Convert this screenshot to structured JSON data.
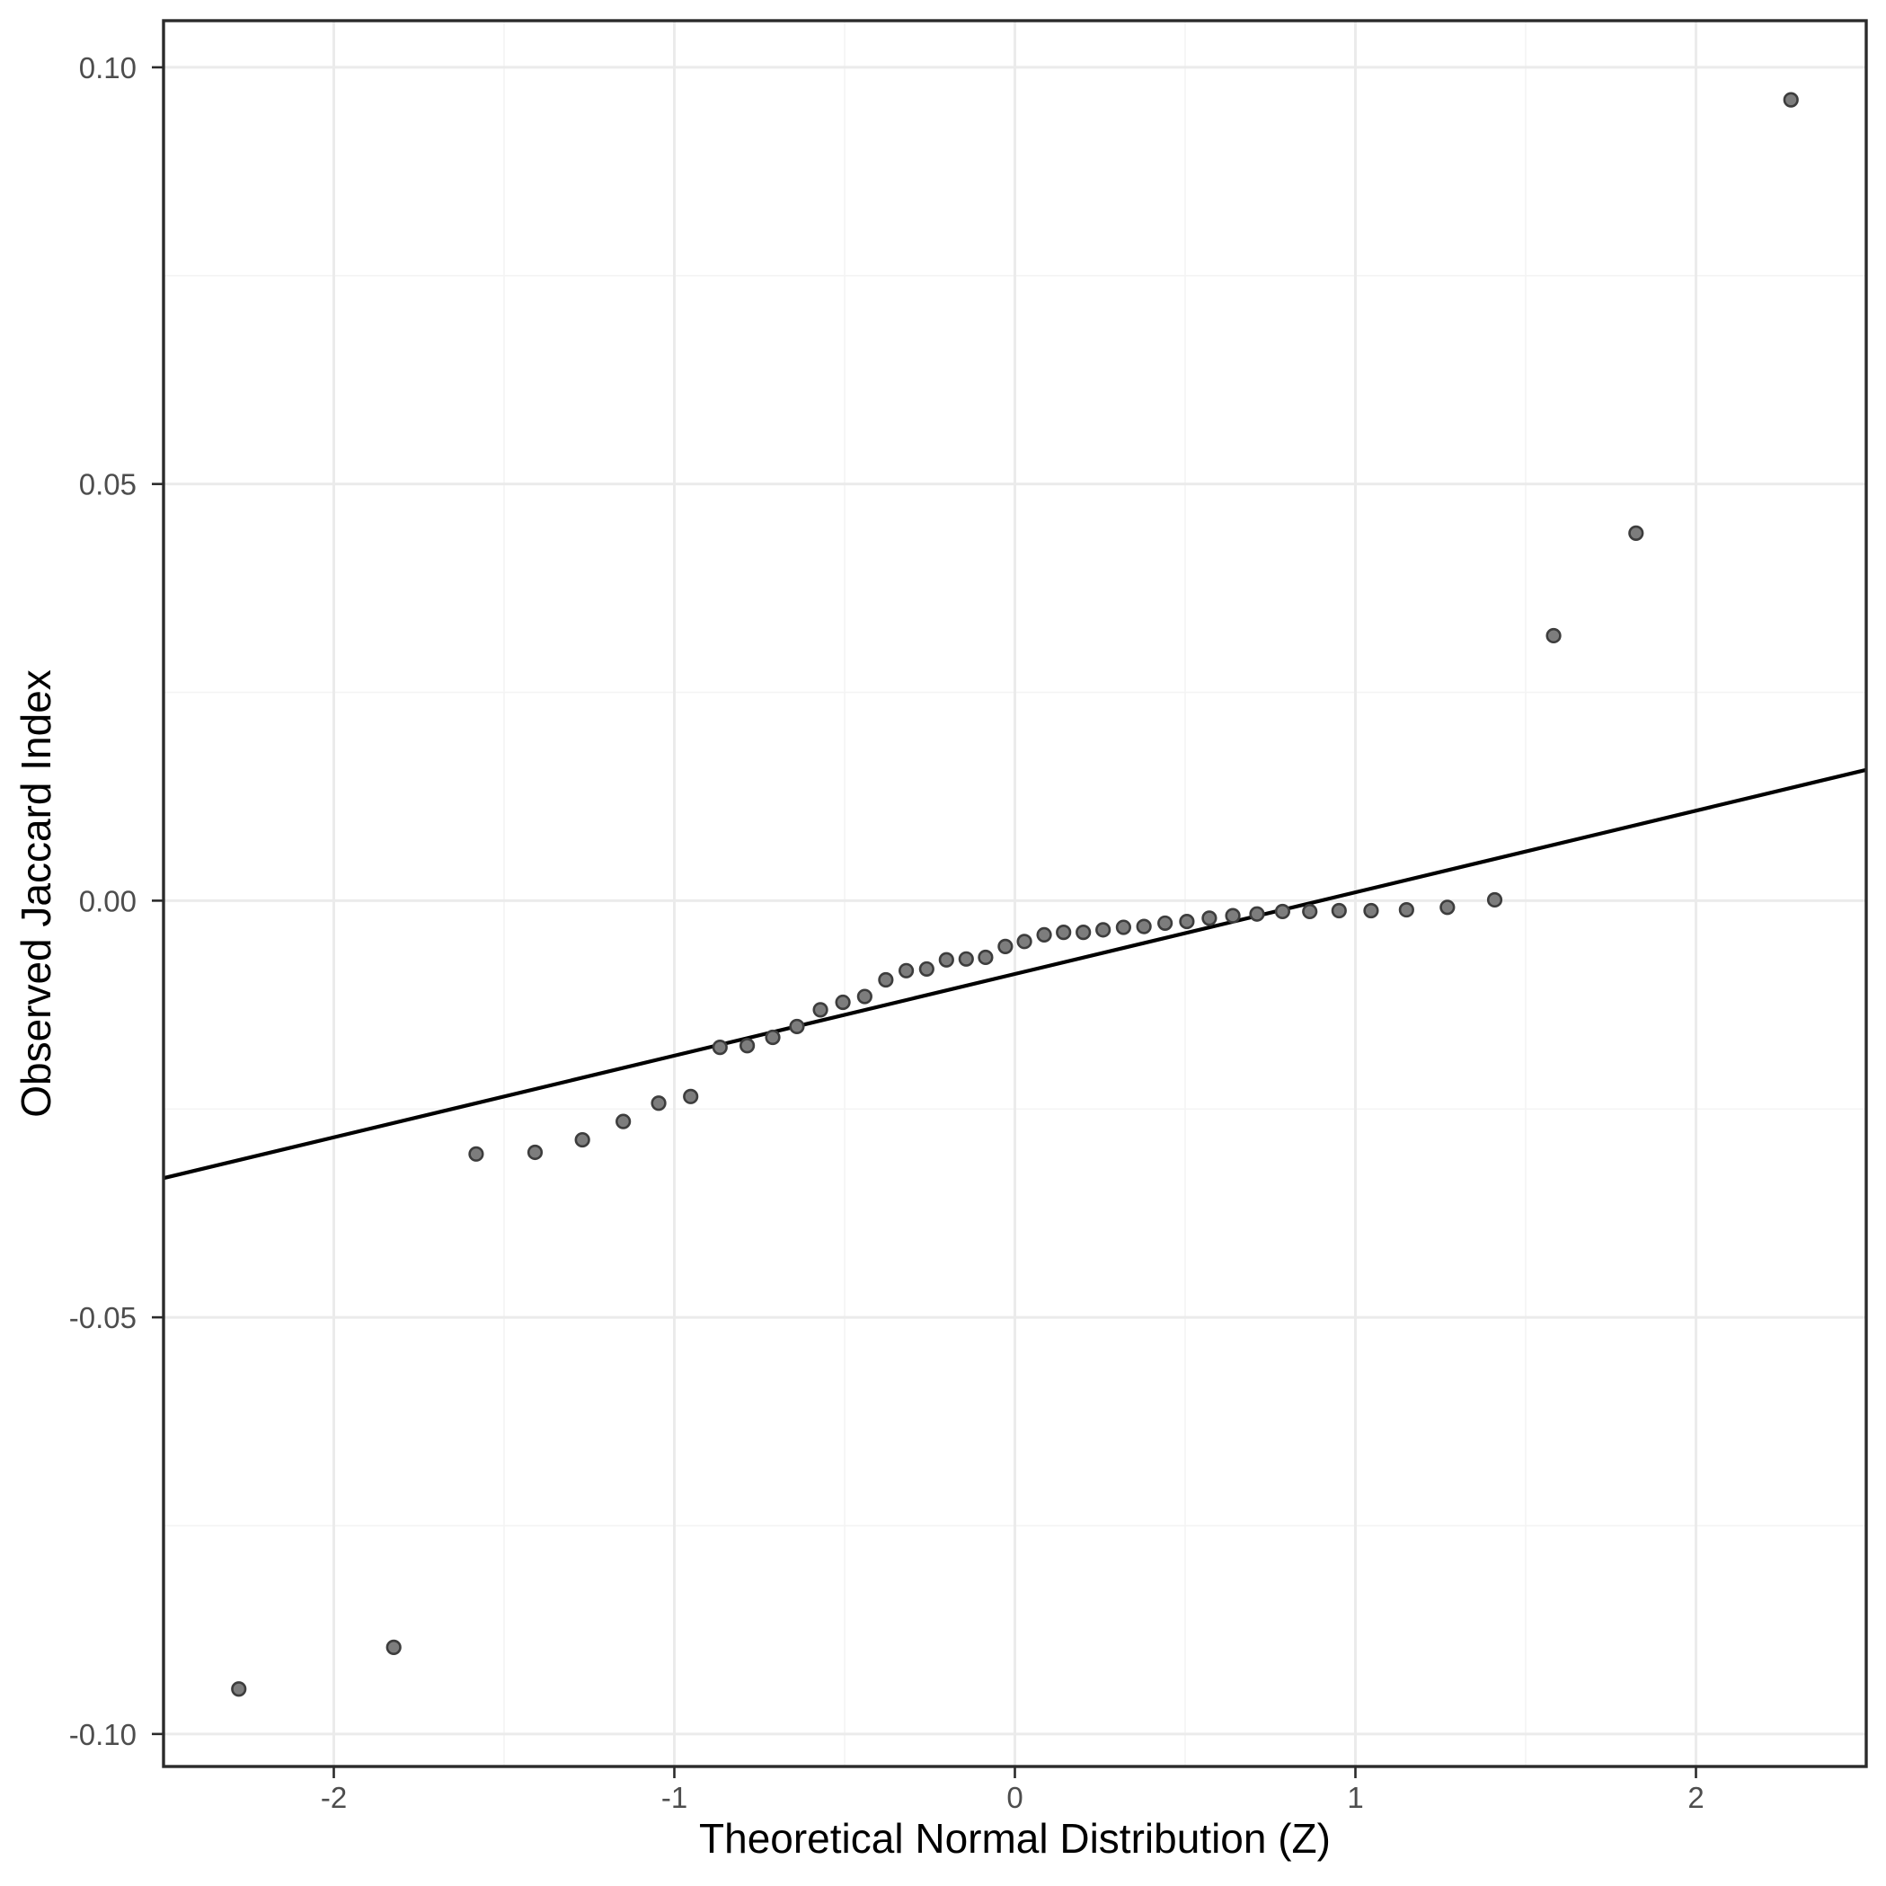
{
  "chart_data": {
    "type": "scatter",
    "title": "",
    "xlabel": "Theoretical Normal Distribution (Z)",
    "ylabel": "Observed Jaccard Index",
    "xlim": [
      -2.5,
      2.5
    ],
    "ylim": [
      -0.1039,
      0.1056
    ],
    "x_ticks": [
      -2,
      -1,
      0,
      1,
      2
    ],
    "x_tick_labels": [
      "-2",
      "-1",
      "0",
      "1",
      "2"
    ],
    "x_minor_ticks": [
      -1.5,
      -0.5,
      0.5,
      1.5
    ],
    "y_ticks": [
      -0.1,
      -0.05,
      0.0,
      0.05,
      0.1
    ],
    "y_tick_labels": [
      "-0.10",
      "-0.05",
      "0.00",
      "0.05",
      "0.10"
    ],
    "y_minor_ticks": [
      -0.075,
      -0.025,
      0.025,
      0.075
    ],
    "grid": true,
    "legend": "none",
    "points": {
      "x": [
        -2.279,
        -1.824,
        -1.582,
        -1.409,
        -1.27,
        -1.15,
        -1.046,
        -0.952,
        -0.866,
        -0.786,
        -0.711,
        -0.64,
        -0.571,
        -0.505,
        -0.441,
        -0.379,
        -0.319,
        -0.259,
        -0.201,
        -0.143,
        -0.086,
        -0.028,
        0.028,
        0.086,
        0.143,
        0.201,
        0.259,
        0.319,
        0.379,
        0.441,
        0.505,
        0.571,
        0.64,
        0.711,
        0.786,
        0.866,
        0.952,
        1.046,
        1.15,
        1.27,
        1.409,
        1.582,
        1.824,
        2.279
      ],
      "y": [
        -0.0946,
        -0.0896,
        -0.0304,
        -0.0302,
        -0.0287,
        -0.0265,
        -0.0243,
        -0.0235,
        -0.0176,
        -0.0174,
        -0.0164,
        -0.0151,
        -0.0131,
        -0.0122,
        -0.0115,
        -0.0095,
        -0.0084,
        -0.0082,
        -0.0071,
        -0.007,
        -0.0068,
        -0.0055,
        -0.0049,
        -0.0041,
        -0.0038,
        -0.0038,
        -0.0035,
        -0.0032,
        -0.0031,
        -0.0027,
        -0.0025,
        -0.0021,
        -0.0018,
        -0.0016,
        -0.0013,
        -0.0013,
        -0.0012,
        -0.0012,
        -0.0011,
        -0.0008,
        0.0001,
        0.0318,
        0.0441,
        0.0961
      ]
    },
    "refline": {
      "intercept": -0.0088,
      "slope": 0.0098
    },
    "colors": {
      "background": "#ffffff",
      "panel_background": "#ffffff",
      "panel_border": "#2b2b2b",
      "grid_major": "#ebebeb",
      "grid_minor": "#f4f4f4",
      "point_fill": "#7d7d7d",
      "point_stroke": "#3d3d3d",
      "reference_line": "#000000",
      "tick_mark": "#2b2b2b",
      "tick_label": "#4d4d4d",
      "axis_title": "#000000"
    }
  }
}
